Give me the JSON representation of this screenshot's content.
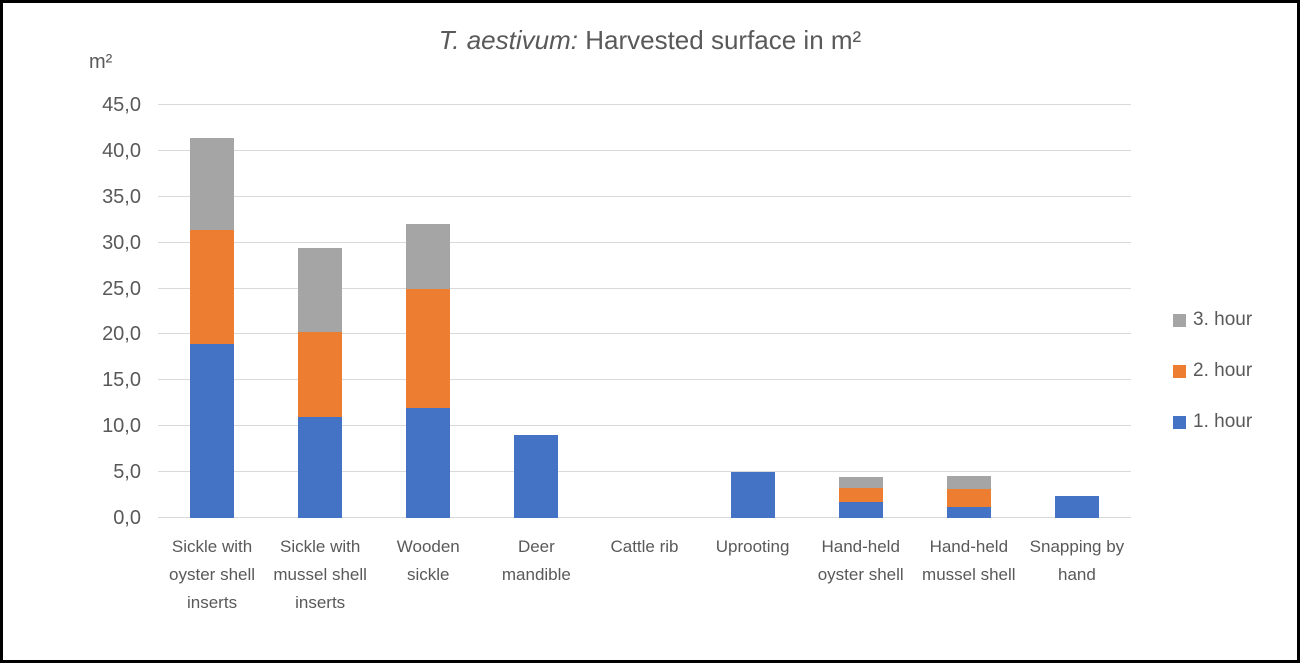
{
  "styles": {
    "background": "#ffffff",
    "frame_border_color": "#000000",
    "text_color": "#595959",
    "gridline_color": "#d9d9d9"
  },
  "chart_data": {
    "type": "bar",
    "stacked": true,
    "title_italic": "T. aestivum:",
    "title_rest": " Harvested surface in m²",
    "unit_label": "m²",
    "categories": [
      "Sickle with oyster shell inserts",
      "Sickle with mussel shell inserts",
      "Wooden sickle",
      "Deer mandible",
      "Cattle rib",
      "Uprooting",
      "Hand-held oyster shell",
      "Hand-held mussel shell",
      "Snapping by hand"
    ],
    "series": [
      {
        "name": "1. hour",
        "color": "#4472c4",
        "values": [
          19.0,
          11.0,
          12.0,
          9.0,
          0,
          5.0,
          1.75,
          1.2,
          2.4
        ]
      },
      {
        "name": "2. hour",
        "color": "#ed7d31",
        "values": [
          12.4,
          9.3,
          13.0,
          0,
          0,
          0,
          1.55,
          2.0,
          0
        ]
      },
      {
        "name": "3. hour",
        "color": "#a5a5a5",
        "values": [
          10.0,
          9.1,
          7.0,
          0,
          0,
          0,
          1.2,
          1.4,
          0
        ]
      }
    ],
    "ylim": [
      0,
      45
    ],
    "ytick_step": 5,
    "yticks": [
      "0,0",
      "5,0",
      "10,0",
      "15,0",
      "20,0",
      "25,0",
      "30,0",
      "35,0",
      "40,0",
      "45,0"
    ],
    "grid": true,
    "legend_position": "right",
    "legend_order": [
      "3. hour",
      "2. hour",
      "1. hour"
    ]
  }
}
